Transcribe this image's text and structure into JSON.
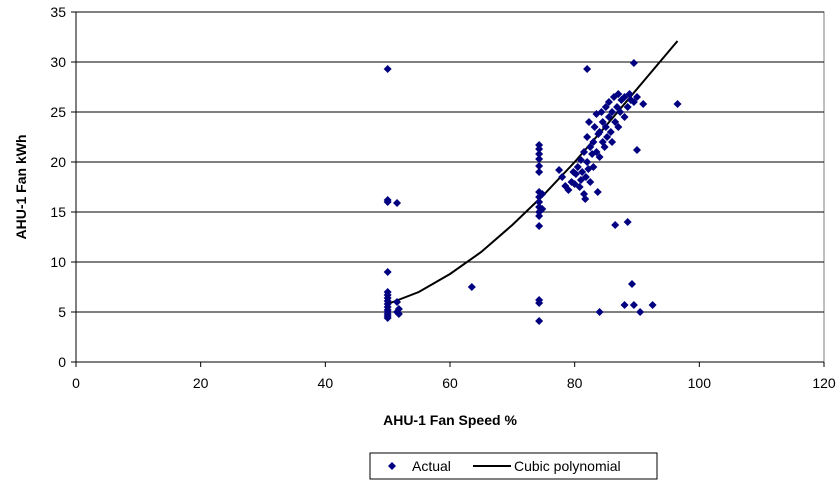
{
  "chart_data": {
    "type": "scatter",
    "title": "",
    "xlabel": "AHU-1 Fan Speed %",
    "ylabel": "AHU-1 Fan kWh",
    "xlim": [
      0,
      120
    ],
    "ylim": [
      0,
      35
    ],
    "xticks": [
      0,
      20,
      40,
      60,
      80,
      100,
      120
    ],
    "yticks": [
      0,
      5,
      10,
      15,
      20,
      25,
      30,
      35
    ],
    "grid": "horizontal",
    "legend_position": "bottom",
    "colors": {
      "actual": "#000080",
      "fit": "#000000"
    },
    "series": [
      {
        "name": "Actual",
        "kind": "scatter",
        "points": [
          [
            50,
            29.3
          ],
          [
            50,
            16.2
          ],
          [
            50,
            16
          ],
          [
            51.5,
            15.9
          ],
          [
            50,
            9.0
          ],
          [
            50,
            7.0
          ],
          [
            50,
            6.7
          ],
          [
            50,
            6.4
          ],
          [
            50,
            6.1
          ],
          [
            50,
            5.8
          ],
          [
            50,
            5.5
          ],
          [
            50,
            5.2
          ],
          [
            50,
            5.0
          ],
          [
            50,
            4.8
          ],
          [
            50,
            4.6
          ],
          [
            50,
            4.4
          ],
          [
            51.5,
            6.0
          ],
          [
            51.8,
            5.3
          ],
          [
            51.5,
            5.0
          ],
          [
            51.8,
            4.8
          ],
          [
            63.5,
            7.5
          ],
          [
            74.3,
            21.7
          ],
          [
            74.3,
            21.3
          ],
          [
            74.3,
            20.8
          ],
          [
            74.3,
            20.3
          ],
          [
            74.3,
            19.6
          ],
          [
            74.3,
            19.0
          ],
          [
            74.3,
            17.0
          ],
          [
            74.3,
            16.5
          ],
          [
            74.3,
            16.0
          ],
          [
            74.3,
            15.5
          ],
          [
            74.3,
            15.0
          ],
          [
            74.3,
            14.6
          ],
          [
            74.3,
            13.6
          ],
          [
            74.3,
            6.2
          ],
          [
            74.3,
            5.9
          ],
          [
            74.3,
            4.1
          ],
          [
            74.8,
            16.8
          ],
          [
            74.8,
            15.3
          ],
          [
            77.5,
            19.2
          ],
          [
            78.0,
            18.5
          ],
          [
            78.5,
            17.6
          ],
          [
            79.0,
            17.2
          ],
          [
            79.5,
            18.0
          ],
          [
            79.8,
            19.0
          ],
          [
            80.0,
            17.8
          ],
          [
            80.2,
            18.8
          ],
          [
            80.5,
            19.5
          ],
          [
            80.8,
            17.5
          ],
          [
            81.0,
            18.2
          ],
          [
            81.0,
            20.2
          ],
          [
            81.2,
            19.0
          ],
          [
            81.5,
            21.0
          ],
          [
            81.5,
            16.8
          ],
          [
            81.7,
            16.3
          ],
          [
            81.8,
            18.5
          ],
          [
            82.0,
            20.0
          ],
          [
            82.0,
            22.5
          ],
          [
            82.2,
            19.3
          ],
          [
            82.3,
            24.0
          ],
          [
            82.5,
            21.5
          ],
          [
            82.5,
            18.0
          ],
          [
            82.8,
            20.8
          ],
          [
            83.0,
            22.0
          ],
          [
            83.0,
            19.5
          ],
          [
            83.2,
            23.5
          ],
          [
            83.5,
            21.0
          ],
          [
            83.5,
            24.8
          ],
          [
            83.7,
            17.0
          ],
          [
            83.8,
            22.8
          ],
          [
            84.0,
            20.5
          ],
          [
            84.0,
            23.0
          ],
          [
            84.3,
            25.0
          ],
          [
            84.5,
            22.0
          ],
          [
            84.5,
            24.0
          ],
          [
            84.8,
            21.5
          ],
          [
            85.0,
            23.5
          ],
          [
            85.0,
            25.5
          ],
          [
            85.2,
            22.5
          ],
          [
            85.5,
            24.5
          ],
          [
            85.5,
            26.0
          ],
          [
            85.8,
            23.0
          ],
          [
            86.0,
            25.0
          ],
          [
            86.0,
            22.0
          ],
          [
            86.3,
            26.5
          ],
          [
            86.5,
            24.0
          ],
          [
            86.8,
            25.5
          ],
          [
            87.0,
            23.5
          ],
          [
            87.0,
            26.8
          ],
          [
            87.3,
            25.0
          ],
          [
            87.5,
            26.2
          ],
          [
            88.0,
            24.5
          ],
          [
            88.0,
            26.5
          ],
          [
            88.5,
            25.5
          ],
          [
            88.8,
            26.8
          ],
          [
            89.0,
            26.2
          ],
          [
            89.5,
            26.0
          ],
          [
            90.0,
            26.5
          ],
          [
            91.0,
            25.8
          ],
          [
            82.0,
            29.3
          ],
          [
            89.5,
            29.9
          ],
          [
            96.5,
            25.8
          ],
          [
            90.0,
            21.2
          ],
          [
            86.5,
            13.7
          ],
          [
            88.5,
            14.0
          ],
          [
            89.2,
            7.8
          ],
          [
            88.0,
            5.7
          ],
          [
            89.5,
            5.7
          ],
          [
            92.5,
            5.7
          ],
          [
            90.5,
            5.0
          ],
          [
            84.0,
            5.0
          ]
        ]
      },
      {
        "name": "Cubic polynomial",
        "kind": "line",
        "points": [
          [
            50,
            5.8
          ],
          [
            55,
            7.0
          ],
          [
            60,
            8.8
          ],
          [
            65,
            11.0
          ],
          [
            70,
            13.7
          ],
          [
            75,
            16.7
          ],
          [
            80,
            20.0
          ],
          [
            85,
            23.6
          ],
          [
            90,
            27.3
          ],
          [
            96.5,
            32.1
          ]
        ]
      }
    ]
  }
}
